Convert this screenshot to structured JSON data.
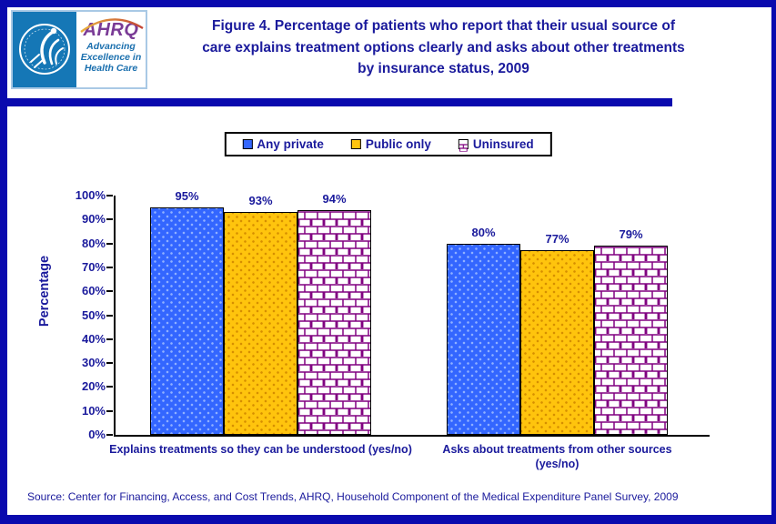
{
  "header": {
    "logo": {
      "acronym": "AHRQ",
      "tagline": "Advancing\nExcellence in\nHealth Care",
      "icons": {
        "hhs_seal": "hhs-eagle-in-ring",
        "rainbow_arc": "orange-red-arc-stroke"
      }
    }
  },
  "chart_data": {
    "type": "bar",
    "title": "Figure 4. Percentage of patients who report that their usual source of care explains treatment options clearly and asks about other treatments by insurance status, 2009",
    "categories": [
      "Explains treatments so they can be understood (yes/no)",
      "Asks about treatments from other sources (yes/no)"
    ],
    "series": [
      {
        "name": "Any private",
        "values": [
          95,
          80
        ],
        "color": "#3366ff",
        "pattern": "dots",
        "dot_color": "#8fb0ff"
      },
      {
        "name": "Public only",
        "values": [
          93,
          77
        ],
        "color": "#ffc40d",
        "pattern": "dots",
        "dot_color": "#d68f00"
      },
      {
        "name": "Uninsured",
        "values": [
          94,
          79
        ],
        "color": "#ffffff",
        "pattern": "brick",
        "pattern_color": "#800080"
      }
    ],
    "ylabel": "Percentage",
    "ylim": [
      0,
      100
    ],
    "ytick_step": 10,
    "ytick_labels": [
      "0%",
      "10%",
      "20%",
      "30%",
      "40%",
      "50%",
      "60%",
      "70%",
      "80%",
      "90%",
      "100%"
    ],
    "data_label_suffix": "%",
    "legend_position": "top-center",
    "grid": false
  },
  "footer": {
    "source": "Source: Center for Financing, Access, and Cost Trends, AHRQ, Household Component of the Medical Expenditure Panel Survey, 2009"
  },
  "colors": {
    "text_navy": "#1a1a9c",
    "frame_navy": "#0a0aae",
    "axis_black": "#000000",
    "brick_purple": "#800080",
    "seal_blue": "#1577b6",
    "ahrq_purple": "#7a3b96",
    "tagline_blue": "#1a6fae"
  }
}
